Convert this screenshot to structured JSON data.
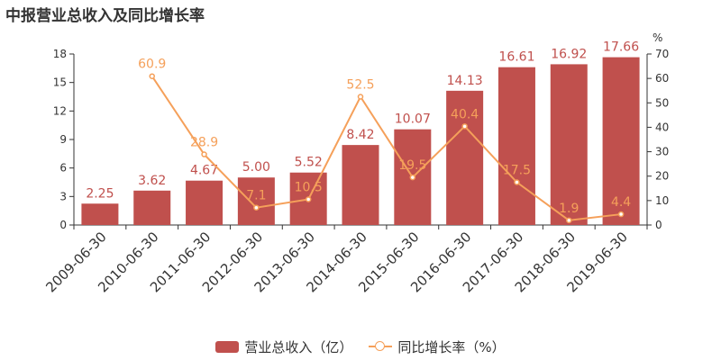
{
  "title": "中报营业总收入及同比增长率",
  "colors": {
    "bar": "#c0504d",
    "line": "#f5a05a",
    "axis": "#333333"
  },
  "chart_data": {
    "type": "bar",
    "categories": [
      "2009-06-30",
      "2010-06-30",
      "2011-06-30",
      "2012-06-30",
      "2013-06-30",
      "2014-06-30",
      "2015-06-30",
      "2016-06-30",
      "2017-06-30",
      "2018-06-30",
      "2019-06-30"
    ],
    "series": [
      {
        "name": "营业总收入（亿）",
        "type": "bar",
        "axis": "left",
        "values": [
          2.25,
          3.62,
          4.67,
          5.0,
          5.52,
          8.42,
          10.07,
          14.13,
          16.61,
          16.92,
          17.66
        ],
        "labels": [
          "2.25",
          "3.62",
          "4.67",
          "5.00",
          "5.52",
          "8.42",
          "10.07",
          "14.13",
          "16.61",
          "16.92",
          "17.66"
        ]
      },
      {
        "name": "同比增长率（%）",
        "type": "line",
        "axis": "right",
        "values": [
          null,
          60.9,
          28.9,
          7.1,
          10.5,
          52.5,
          19.5,
          40.4,
          17.5,
          1.9,
          4.4
        ],
        "labels": [
          "",
          "60.9",
          "28.9",
          "7.1",
          "10.5",
          "52.5",
          "19.5",
          "40.4",
          "17.5",
          "1.9",
          "4.4"
        ]
      }
    ],
    "y_left": {
      "lim": [
        0,
        18
      ],
      "ticks": [
        "0",
        "3",
        "6",
        "9",
        "12",
        "15",
        "18"
      ]
    },
    "y_right": {
      "lim": [
        0,
        70
      ],
      "ticks": [
        "0",
        "10",
        "20",
        "30",
        "40",
        "50",
        "60",
        "70"
      ],
      "unit": "%"
    },
    "grid": false,
    "legend_position": "bottom-center"
  },
  "legend": {
    "bar_label": "营业总收入（亿）",
    "line_label": "同比增长率（%）"
  }
}
